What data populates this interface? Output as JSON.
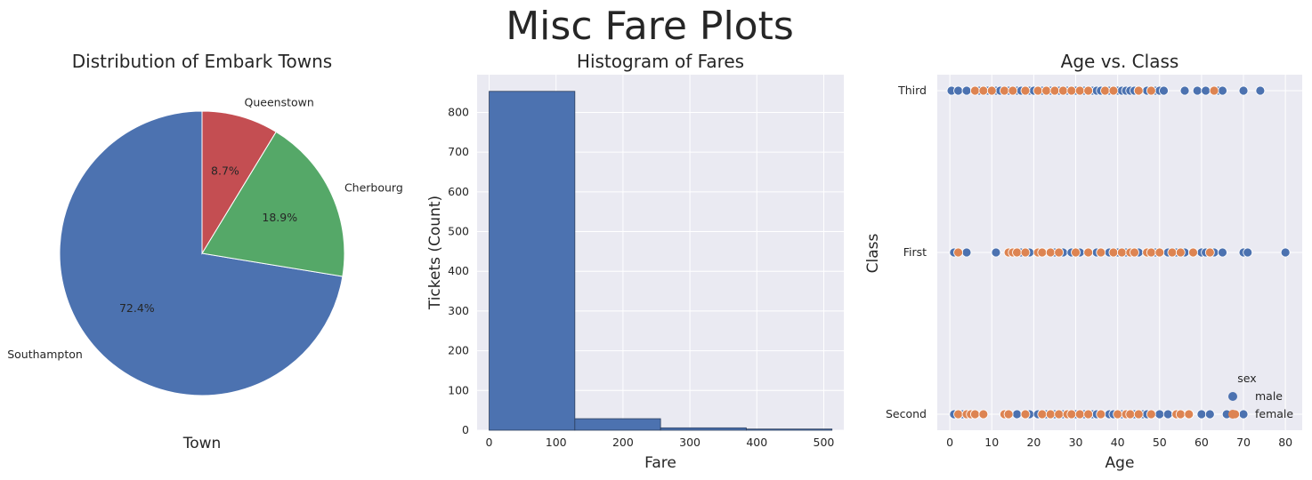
{
  "figure": {
    "title": "Misc Fare Plots",
    "background": "#ffffff",
    "axes_background": "#eaeaf2",
    "grid_color": "#ffffff"
  },
  "chart_data": [
    {
      "type": "pie",
      "title": "Distribution of Embark Towns",
      "xlabel": "Town",
      "start_angle_deg": 90,
      "direction": "counterclockwise",
      "slices": [
        {
          "label": "Southampton",
          "value": 72.4,
          "pct_label": "72.4%",
          "color": "#4c72b0"
        },
        {
          "label": "Cherbourg",
          "value": 18.9,
          "pct_label": "18.9%",
          "color": "#55a868"
        },
        {
          "label": "Queenstown",
          "value": 8.7,
          "pct_label": "8.7%",
          "color": "#c44e52"
        }
      ]
    },
    {
      "type": "bar",
      "subtype": "histogram",
      "title": "Histogram of Fares",
      "xlabel": "Fare",
      "ylabel": "Tickets (Count)",
      "bin_edges": [
        0,
        128.08,
        256.16,
        384.25,
        512.33
      ],
      "counts": [
        853,
        29,
        6,
        3
      ],
      "xlim": [
        -18,
        530
      ],
      "ylim": [
        0,
        895
      ],
      "xticks": [
        0,
        100,
        200,
        300,
        400,
        500
      ],
      "yticks": [
        0,
        100,
        200,
        300,
        400,
        500,
        600,
        700,
        800
      ],
      "bar_color": "#4c72b0",
      "grid": true
    },
    {
      "type": "scatter",
      "title": "Age vs. Class",
      "xlabel": "Age",
      "ylabel": "Class",
      "categories": [
        "Third",
        "First",
        "Second"
      ],
      "xlim": [
        -3,
        84
      ],
      "xticks": [
        0,
        10,
        20,
        30,
        40,
        50,
        60,
        70,
        80
      ],
      "grid": true,
      "legend": {
        "title": "sex",
        "placement": "lower-right"
      },
      "series": [
        {
          "name": "male",
          "color": "#4c72b0",
          "points": {
            "Third": [
              0.4,
              2,
              4,
              7,
              9,
              11,
              12,
              14,
              16,
              17,
              19,
              20,
              21,
              22,
              24,
              25,
              26,
              28,
              29,
              30,
              32,
              33,
              34,
              35,
              36,
              38,
              40,
              41,
              42,
              43,
              44,
              45,
              47,
              49,
              50,
              51,
              56,
              59,
              61,
              64,
              65,
              70,
              74
            ],
            "First": [
              1,
              4,
              11,
              17,
              19,
              22,
              25,
              27,
              29,
              31,
              33,
              35,
              36,
              38,
              40,
              42,
              45,
              47,
              49,
              50,
              52,
              54,
              56,
              58,
              60,
              61,
              63,
              65,
              70,
              71,
              80
            ],
            "Second": [
              1,
              3,
              13,
              16,
              18,
              19,
              21,
              23,
              24,
              25,
              27,
              28,
              30,
              31,
              32,
              34,
              35,
              36,
              38,
              39,
              41,
              42,
              44,
              46,
              47,
              50,
              52,
              54,
              57,
              60,
              62,
              66,
              70
            ]
          }
        },
        {
          "name": "female",
          "color": "#dd8452",
          "points": {
            "Third": [
              6,
              8,
              10,
              13,
              15,
              18,
              21,
              23,
              25,
              27,
              29,
              31,
              33,
              37,
              39,
              45,
              48,
              63
            ],
            "First": [
              2,
              14,
              15,
              16,
              18,
              21,
              22,
              24,
              26,
              30,
              33,
              36,
              39,
              41,
              43,
              44,
              47,
              48,
              50,
              53,
              55,
              58,
              62
            ],
            "Second": [
              2,
              4,
              5,
              6,
              8,
              13,
              14,
              18,
              22,
              24,
              26,
              28,
              29,
              31,
              33,
              36,
              40,
              42,
              43,
              45,
              48,
              54,
              55,
              57,
              68
            ]
          }
        }
      ]
    }
  ]
}
